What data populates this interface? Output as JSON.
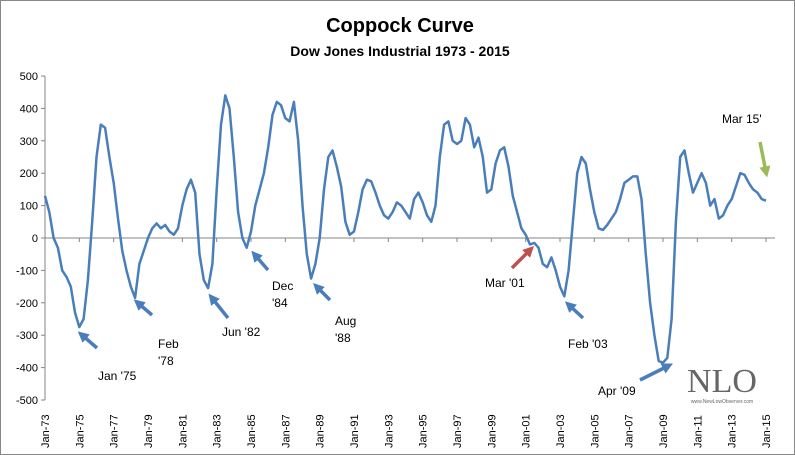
{
  "chart_data": {
    "type": "line",
    "title": "Coppock Curve",
    "subtitle": "Dow Jones Industrial 1973 - 2015",
    "categories": [
      "Jan-73",
      null,
      null,
      null,
      null,
      null,
      null,
      null,
      "Jan-75",
      null,
      null,
      null,
      null,
      null,
      null,
      null,
      "Jan-77",
      null,
      null,
      null,
      null,
      null,
      null,
      null,
      "Jan-79",
      null,
      null,
      null,
      null,
      null,
      null,
      null,
      "Jan-81",
      null,
      null,
      null,
      null,
      null,
      null,
      null,
      "Jan-83",
      null,
      null,
      null,
      null,
      null,
      null,
      null,
      "Jan-85",
      null,
      null,
      null,
      null,
      null,
      null,
      null,
      "Jan-87",
      null,
      null,
      null,
      null,
      null,
      null,
      null,
      "Jan-89",
      null,
      null,
      null,
      null,
      null,
      null,
      null,
      "Jan-91",
      null,
      null,
      null,
      null,
      null,
      null,
      null,
      "Jan-93",
      null,
      null,
      null,
      null,
      null,
      null,
      null,
      "Jan-95",
      null,
      null,
      null,
      null,
      null,
      null,
      null,
      "Jan-97",
      null,
      null,
      null,
      null,
      null,
      null,
      null,
      "Jan-99",
      null,
      null,
      null,
      null,
      null,
      null,
      null,
      "Jan-01",
      null,
      null,
      null,
      null,
      null,
      null,
      null,
      "Jan-03",
      null,
      null,
      null,
      null,
      null,
      null,
      null,
      "Jan-05",
      null,
      null,
      null,
      null,
      null,
      null,
      null,
      "Jan-07",
      null,
      null,
      null,
      null,
      null,
      null,
      null,
      "Jan-09",
      null,
      null,
      null,
      null,
      null,
      null,
      null,
      "Jan-11",
      null,
      null,
      null,
      null,
      null,
      null,
      null,
      "Jan-13",
      null,
      null,
      null,
      null,
      null,
      null,
      null,
      "Jan-15"
    ],
    "series": [
      {
        "name": "Coppock Curve",
        "color": "#4a7ebb",
        "values": [
          130,
          80,
          0,
          -30,
          -100,
          -120,
          -150,
          -230,
          -275,
          -250,
          -130,
          50,
          250,
          350,
          340,
          250,
          170,
          60,
          -40,
          -100,
          -150,
          -185,
          -80,
          -40,
          0,
          30,
          45,
          30,
          40,
          20,
          10,
          30,
          100,
          150,
          180,
          140,
          -50,
          -130,
          -155,
          -80,
          150,
          350,
          440,
          400,
          250,
          80,
          0,
          -30,
          20,
          100,
          150,
          200,
          280,
          380,
          420,
          410,
          370,
          360,
          420,
          300,
          100,
          -50,
          -125,
          -80,
          0,
          150,
          250,
          270,
          220,
          160,
          50,
          10,
          20,
          80,
          150,
          180,
          175,
          140,
          100,
          70,
          60,
          80,
          110,
          100,
          80,
          60,
          120,
          140,
          110,
          70,
          50,
          100,
          250,
          350,
          360,
          300,
          290,
          300,
          370,
          350,
          280,
          310,
          250,
          140,
          150,
          230,
          270,
          280,
          220,
          130,
          80,
          30,
          10,
          -20,
          -15,
          -30,
          -80,
          -90,
          -60,
          -100,
          -150,
          -180,
          -100,
          50,
          200,
          250,
          230,
          150,
          80,
          30,
          25,
          40,
          60,
          80,
          120,
          170,
          180,
          190,
          190,
          120,
          -50,
          -200,
          -300,
          -380,
          -385,
          -370,
          -250,
          50,
          250,
          270,
          200,
          140,
          170,
          200,
          170,
          100,
          120,
          60,
          70,
          100,
          120,
          160,
          200,
          195,
          170,
          150,
          140,
          120,
          115
        ]
      }
    ],
    "ylim": [
      -500,
      500
    ],
    "yticks": [
      -500,
      -400,
      -300,
      -200,
      -100,
      0,
      100,
      200,
      300,
      400,
      500
    ],
    "annotations": [
      {
        "lines": [
          "Jan '75"
        ],
        "color": "#4a7ebb"
      },
      {
        "lines": [
          "Feb",
          "'78"
        ],
        "color": "#4a7ebb"
      },
      {
        "lines": [
          "Jun '82"
        ],
        "color": "#4a7ebb"
      },
      {
        "lines": [
          "Dec",
          "'84"
        ],
        "color": "#4a7ebb"
      },
      {
        "lines": [
          "Aug",
          "'88"
        ],
        "color": "#4a7ebb"
      },
      {
        "lines": [
          "Mar '01"
        ],
        "color": "#c0504d"
      },
      {
        "lines": [
          "Feb '03"
        ],
        "color": "#4a7ebb"
      },
      {
        "lines": [
          "Apr '09"
        ],
        "color": "#4a7ebb"
      },
      {
        "lines": [
          "Mar 15'"
        ],
        "color": "#9bbb59"
      }
    ],
    "watermark": "NLO",
    "watermark_url": "www.NewLowObserver.com"
  }
}
